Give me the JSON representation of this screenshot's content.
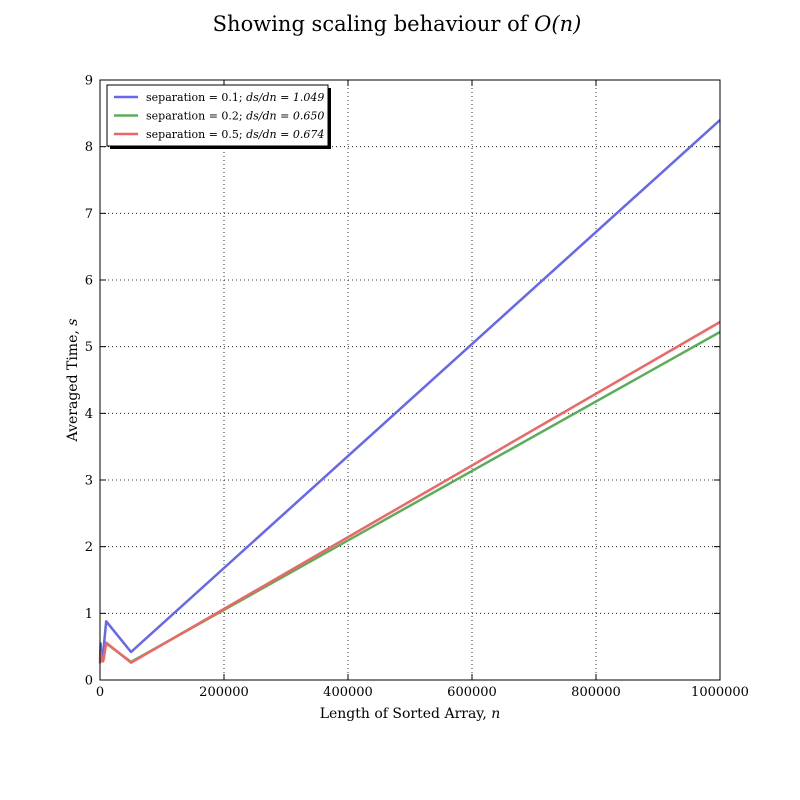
{
  "chart_data": {
    "type": "line",
    "title": {
      "prefix": "Showing scaling behaviour of ",
      "math": "O(n)"
    },
    "xlabel": {
      "prefix": "Length of Sorted Array, ",
      "math": "n"
    },
    "ylabel": {
      "prefix": "Averaged Time, ",
      "math": "s"
    },
    "xlim": [
      0,
      1000000
    ],
    "ylim": [
      0,
      9
    ],
    "xticks": [
      0,
      200000,
      400000,
      600000,
      800000,
      1000000
    ],
    "xtick_labels": [
      "0",
      "200000",
      "400000",
      "600000",
      "800000",
      "1000000"
    ],
    "yticks": [
      0,
      1,
      2,
      3,
      4,
      5,
      6,
      7,
      8,
      9
    ],
    "ytick_labels": [
      "0",
      "1",
      "2",
      "3",
      "4",
      "5",
      "6",
      "7",
      "8",
      "9"
    ],
    "grid": true,
    "legend_position": "top-left",
    "series": [
      {
        "name": "separation = 0.1; ds/dn = 1.049",
        "label_text": "separation = 0.1; ",
        "label_math": "ds/dn = 1.049",
        "color": "#6666f0",
        "x": [
          100,
          1000,
          2000,
          5000,
          10000,
          50000,
          1000000
        ],
        "y": [
          0.3,
          0.55,
          0.35,
          0.4,
          0.88,
          0.42,
          8.4
        ]
      },
      {
        "name": "separation = 0.2; ds/dn = 0.650",
        "label_text": "separation = 0.2; ",
        "label_math": "ds/dn = 0.650",
        "color": "#5aad5a",
        "x": [
          100,
          1000,
          2000,
          5000,
          10000,
          50000,
          1000000
        ],
        "y": [
          0.25,
          0.4,
          0.3,
          0.28,
          0.55,
          0.27,
          5.22
        ]
      },
      {
        "name": "separation = 0.5; ds/dn = 0.674",
        "label_text": "separation = 0.5; ",
        "label_math": "ds/dn = 0.674",
        "color": "#ee6666",
        "x": [
          100,
          1000,
          2000,
          5000,
          10000,
          50000,
          1000000
        ],
        "y": [
          0.25,
          0.42,
          0.3,
          0.28,
          0.56,
          0.26,
          5.37
        ]
      }
    ]
  }
}
